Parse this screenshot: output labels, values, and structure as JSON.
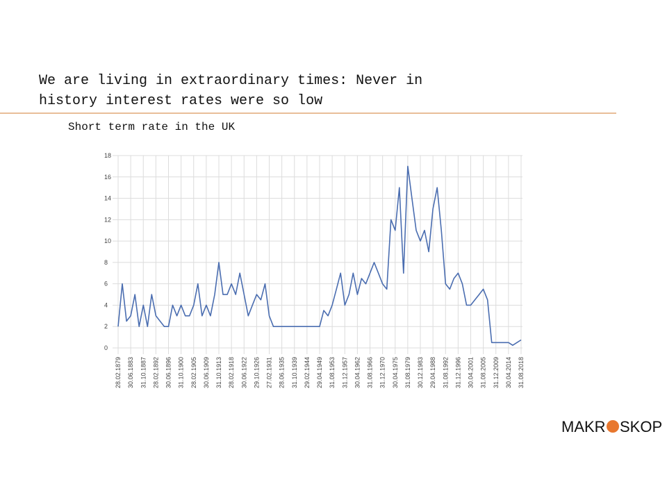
{
  "header": {
    "title_line1": "We are living in extraordinary times: Never in",
    "title_line2": "history interest rates were so low"
  },
  "chart_data": {
    "type": "line",
    "title": "Short term rate in the UK",
    "categories": [
      "28.02.1879",
      null,
      null,
      "30.06.1883",
      null,
      null,
      "31.10.1887",
      null,
      null,
      "28.02.1892",
      null,
      null,
      "30.06.1896",
      null,
      null,
      "31.10.1900",
      null,
      null,
      "28.02.1905",
      null,
      null,
      "30.06.1909",
      null,
      null,
      "31.10.1913",
      null,
      null,
      "28.02.1918",
      null,
      null,
      "30.06.1922",
      null,
      null,
      "29.10.1926",
      null,
      null,
      "27.02.1931",
      null,
      null,
      "28.06.1935",
      null,
      null,
      "31.10.1939",
      null,
      null,
      "29.02.1944",
      null,
      null,
      "29.04.1949",
      null,
      null,
      "31.08.1953",
      null,
      null,
      "31.12.1957",
      null,
      null,
      "30.04.1962",
      null,
      null,
      "31.08.1966",
      null,
      null,
      "31.12.1970",
      null,
      null,
      "30.04.1975",
      null,
      null,
      "31.08.1979",
      null,
      null,
      "30.12.1983",
      null,
      null,
      "29.04.1988",
      null,
      null,
      "31.08.1992",
      null,
      null,
      "31.12.1996",
      null,
      null,
      "30.04.2001",
      null,
      null,
      "31.08.2005",
      null,
      null,
      "31.12.2009",
      null,
      null,
      "30.04.2014",
      null,
      null,
      "31.08.2018"
    ],
    "series": [
      {
        "color": "#4a6db0",
        "values": [
          2,
          6,
          2.5,
          3,
          5,
          2,
          4,
          2,
          5,
          3,
          2.5,
          2,
          2,
          4,
          3,
          4,
          3,
          3,
          4,
          6,
          3,
          4,
          3,
          5,
          8,
          5,
          5,
          6,
          5,
          7,
          5,
          3,
          4,
          5,
          4.5,
          6,
          3,
          2,
          2,
          2,
          2,
          2,
          2,
          2,
          2,
          2,
          2,
          2,
          2,
          3.5,
          3,
          4,
          5.5,
          7,
          4,
          5,
          7,
          5,
          6.5,
          6,
          7,
          8,
          7,
          6,
          5.5,
          12,
          11,
          15,
          7,
          17,
          14,
          11,
          10,
          11,
          9,
          13,
          15,
          11,
          6,
          5.5,
          6.5,
          7,
          6,
          4,
          4,
          4.5,
          5,
          5.5,
          4.5,
          0.5,
          0.5,
          0.5,
          0.5,
          0.5,
          0.25,
          0.5,
          0.75
        ]
      }
    ],
    "ylim": [
      0,
      18
    ],
    "yticks": [
      0,
      2,
      4,
      6,
      8,
      10,
      12,
      14,
      16,
      18
    ],
    "grid": true
  },
  "logo": {
    "left": "MAKR",
    "right": "SKOP"
  }
}
